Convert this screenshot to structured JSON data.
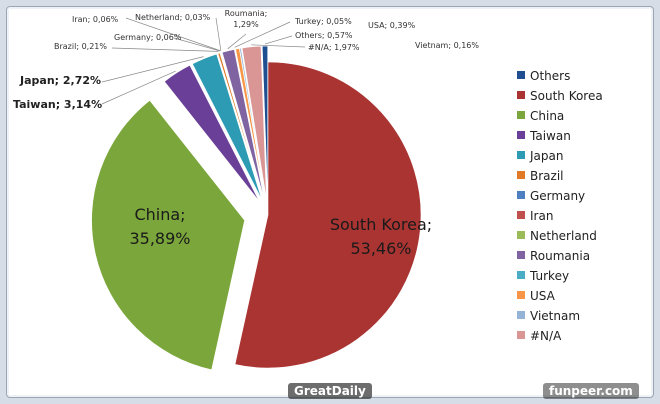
{
  "watermarks": {
    "left": "GreatDaily",
    "right": "funpeer.com"
  },
  "chart_data": {
    "type": "pie",
    "title": "",
    "slices": [
      {
        "name": "South Korea",
        "value": 53.46,
        "label": "South Korea;",
        "pct_text": "53,46%",
        "color": "#a93432",
        "exploded": false
      },
      {
        "name": "China",
        "value": 35.89,
        "label": "China;",
        "pct_text": "35,89%",
        "color": "#7ba63b",
        "exploded": true
      },
      {
        "name": "Taiwan",
        "value": 3.14,
        "label": "Taiwan; 3,14%",
        "color": "#6a3f98",
        "exploded": true
      },
      {
        "name": "Japan",
        "value": 2.72,
        "label": "Japan; 2,72%",
        "color": "#2e9bb5",
        "exploded": true
      },
      {
        "name": "Brazil",
        "value": 0.21,
        "label": "Brazil; 0,21%",
        "color": "#e07a26",
        "exploded": true
      },
      {
        "name": "Germany",
        "value": 0.06,
        "label": "Germany; 0,06%",
        "color": "#4e7fc0",
        "exploded": true
      },
      {
        "name": "Iran",
        "value": 0.06,
        "label": "Iran; 0,06%",
        "color": "#c0504d",
        "exploded": true
      },
      {
        "name": "Netherland",
        "value": 0.03,
        "label": "Netherland; 0,03%",
        "color": "#9bbb59",
        "exploded": true
      },
      {
        "name": "Roumania",
        "value": 1.29,
        "label": "Roumania;",
        "label2": "1,29%",
        "color": "#8064a2",
        "exploded": true
      },
      {
        "name": "Turkey",
        "value": 0.05,
        "label": "Turkey; 0,05%",
        "color": "#4bacc6",
        "exploded": true
      },
      {
        "name": "USA",
        "value": 0.39,
        "label": "USA; 0,39%",
        "color": "#f79646",
        "exploded": true
      },
      {
        "name": "Vietnam",
        "value": 0.16,
        "label": "Vietnam; 0,16%",
        "color": "#95b3d7",
        "exploded": true
      },
      {
        "name": "#N/A",
        "value": 1.97,
        "label": "#N/A; 1,97%",
        "color": "#d99694",
        "exploded": true
      },
      {
        "name": "Others",
        "value": 0.57,
        "label": "Others; 0,57%",
        "color": "#1f4e91",
        "exploded": true
      }
    ],
    "legend": {
      "position": "right",
      "entries": [
        {
          "name": "Others",
          "color": "#1f4e91"
        },
        {
          "name": "South Korea",
          "color": "#a93432"
        },
        {
          "name": "China",
          "color": "#7ba63b"
        },
        {
          "name": "Taiwan",
          "color": "#6a3f98"
        },
        {
          "name": "Japan",
          "color": "#2e9bb5"
        },
        {
          "name": "Brazil",
          "color": "#e07a26"
        },
        {
          "name": "Germany",
          "color": "#4e7fc0"
        },
        {
          "name": "Iran",
          "color": "#c0504d"
        },
        {
          "name": "Netherland",
          "color": "#9bbb59"
        },
        {
          "name": "Roumania",
          "color": "#8064a2"
        },
        {
          "name": "Turkey",
          "color": "#4bacc6"
        },
        {
          "name": "USA",
          "color": "#f79646"
        },
        {
          "name": "Vietnam",
          "color": "#95b3d7"
        },
        {
          "name": "#N/A",
          "color": "#d99694"
        }
      ]
    }
  }
}
